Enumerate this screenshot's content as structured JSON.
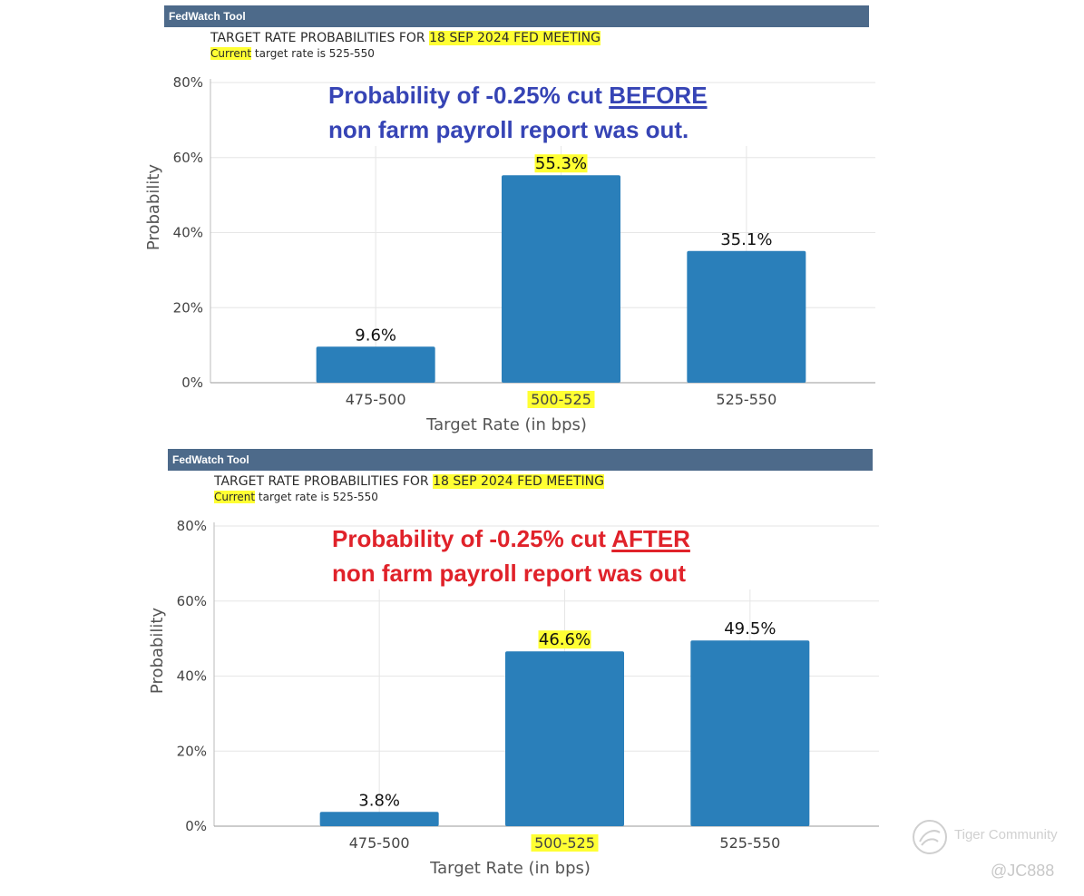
{
  "chart_data": [
    {
      "type": "bar",
      "panel_title": "FedWatch Tool",
      "meeting_prefix": "TARGET RATE PROBABILITIES FOR",
      "meeting_date": "18 SEP 2024 FED MEETING",
      "current_word": "Current",
      "current_suffix": "target rate is 525-550",
      "annotation_line1_prefix": "Probability of -0.25% cut",
      "annotation_keyword": "BEFORE",
      "annotation_line2": "non farm payroll report was out.",
      "annotation_color": "#3644b5",
      "categories": [
        "475-500",
        "500-525",
        "525-550"
      ],
      "values": [
        9.6,
        55.3,
        35.1
      ],
      "value_labels": [
        "9.6%",
        "55.3%",
        "35.1%"
      ],
      "highlight_index": 1,
      "xlabel": "Target Rate (in bps)",
      "ylabel": "Probability",
      "ylim": [
        0,
        80
      ],
      "yticks": [
        0,
        20,
        40,
        60,
        80
      ],
      "ytick_labels": [
        "0%",
        "20%",
        "40%",
        "60%",
        "80%"
      ],
      "bar_color": "#2a7fba",
      "grid": true
    },
    {
      "type": "bar",
      "panel_title": "FedWatch Tool",
      "meeting_prefix": "TARGET RATE PROBABILITIES FOR",
      "meeting_date": "18 SEP 2024 FED MEETING",
      "current_word": "Current",
      "current_suffix": "target rate is 525-550",
      "annotation_line1_prefix": "Probability of -0.25% cut",
      "annotation_keyword": "AFTER",
      "annotation_line2": "non farm payroll report was out",
      "annotation_color": "#e0222a",
      "categories": [
        "475-500",
        "500-525",
        "525-550"
      ],
      "values": [
        3.8,
        46.6,
        49.5
      ],
      "value_labels": [
        "3.8%",
        "46.6%",
        "49.5%"
      ],
      "highlight_index": 1,
      "xlabel": "Target Rate (in bps)",
      "ylabel": "Probability",
      "ylim": [
        0,
        80
      ],
      "yticks": [
        0,
        20,
        40,
        60,
        80
      ],
      "ytick_labels": [
        "0%",
        "20%",
        "40%",
        "60%",
        "80%"
      ],
      "bar_color": "#2a7fba",
      "grid": true
    }
  ],
  "watermark": {
    "brand": "Tiger Community",
    "handle": "@JC888",
    "icon": "tiger-community-logo-icon"
  }
}
